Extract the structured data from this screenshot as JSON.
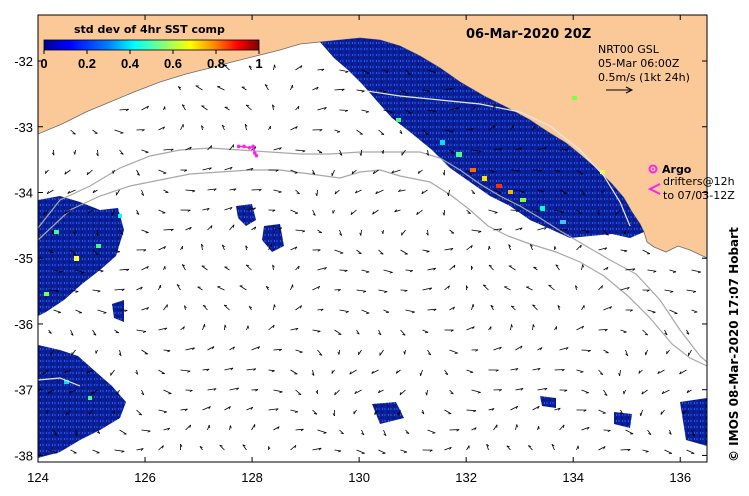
{
  "map": {
    "date_label": "06-Mar-2020 20Z",
    "lon_range": [
      124,
      136.5
    ],
    "lat_range": [
      -38.1,
      -31.3
    ],
    "x_ticks": [
      124,
      126,
      128,
      130,
      132,
      134,
      136
    ],
    "y_ticks": [
      -32,
      -33,
      -34,
      -35,
      -36,
      -37,
      -38
    ],
    "x_tick_labels": [
      "124",
      "126",
      "128",
      "130",
      "132",
      "134",
      "136"
    ],
    "y_tick_labels": [
      "-32",
      "-33",
      "-34",
      "-35",
      "-36",
      "-37",
      "-38"
    ],
    "colors": {
      "land": "#fbc898",
      "ocean": "#ffffff",
      "sst_base": "#0a1f9a",
      "argo": "#ff22ee",
      "contour": "#a8a8a8",
      "vector": "#000000"
    }
  },
  "legend": {
    "title": "std dev of 4hr SST comp",
    "ticks": [
      "0",
      "0.2",
      "0.4",
      "0.6",
      "0.8",
      "1"
    ],
    "tick_values": [
      0,
      0.2,
      0.4,
      0.6,
      0.8,
      1
    ],
    "colormap": [
      "#00008f",
      "#0000ff",
      "#0080ff",
      "#00ffff",
      "#80ff80",
      "#ffff00",
      "#ff8000",
      "#ff0000",
      "#800000"
    ]
  },
  "info": {
    "product": "NRT00 GSL",
    "date": "05-Mar 06:00Z",
    "scale": "0.5m/s (1kt 24h)"
  },
  "argo": {
    "title": "Argo",
    "line1": "drifters@12h",
    "line2": "to 07/03-12Z",
    "track": [
      [
        127.75,
        -33.3
      ],
      [
        127.85,
        -33.3
      ],
      [
        127.95,
        -33.32
      ],
      [
        128.02,
        -33.3
      ],
      [
        128.05,
        -33.4
      ],
      [
        128.08,
        -33.44
      ]
    ]
  },
  "credit": "© IMOS 08-Mar-2020 17:07 Hobart"
}
